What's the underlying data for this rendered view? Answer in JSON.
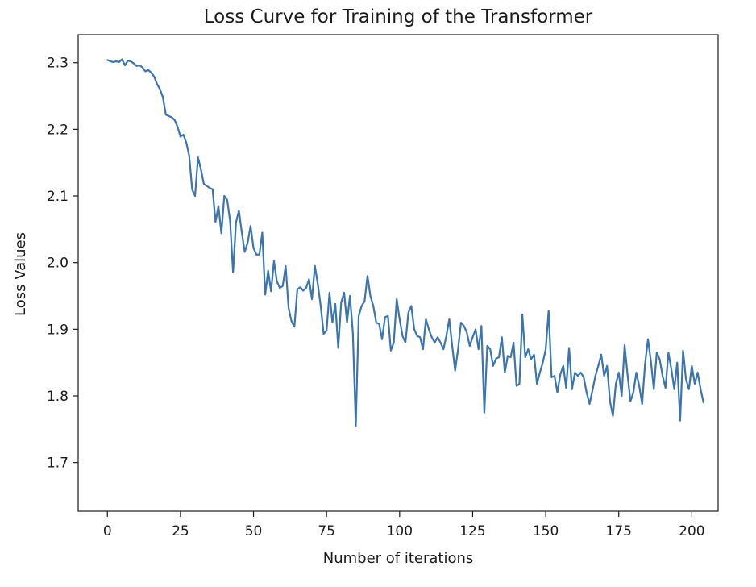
{
  "chart_data": {
    "type": "line",
    "title": "Loss Curve for Training of the Transformer",
    "xlabel": "Number of iterations",
    "ylabel": "Loss Values",
    "xlim": [
      -10,
      209
    ],
    "ylim": [
      1.627,
      2.342
    ],
    "x_ticks": [
      0,
      25,
      50,
      75,
      100,
      125,
      150,
      175,
      200
    ],
    "x_tick_labels": [
      "0",
      "25",
      "50",
      "75",
      "100",
      "125",
      "150",
      "175",
      "200"
    ],
    "y_ticks": [
      1.7,
      1.8,
      1.9,
      2.0,
      2.1,
      2.2,
      2.3
    ],
    "y_tick_labels": [
      "1.7",
      "1.8",
      "1.9",
      "2.0",
      "2.1",
      "2.2",
      "2.3"
    ],
    "grid": false,
    "series": [
      {
        "color": "#3b75af",
        "x_start": 0,
        "x_step": 1,
        "values": [
          2.304,
          2.302,
          2.301,
          2.302,
          2.301,
          2.305,
          2.296,
          2.303,
          2.302,
          2.299,
          2.295,
          2.296,
          2.293,
          2.287,
          2.289,
          2.285,
          2.279,
          2.268,
          2.26,
          2.248,
          2.222,
          2.22,
          2.218,
          2.214,
          2.204,
          2.189,
          2.192,
          2.18,
          2.16,
          2.11,
          2.1,
          2.158,
          2.14,
          2.118,
          2.115,
          2.112,
          2.11,
          2.061,
          2.085,
          2.044,
          2.1,
          2.094,
          2.062,
          1.985,
          2.06,
          2.078,
          2.045,
          2.016,
          2.03,
          2.055,
          2.022,
          2.012,
          2.012,
          2.045,
          1.952,
          1.988,
          1.957,
          2.002,
          1.972,
          1.962,
          1.965,
          1.995,
          1.932,
          1.912,
          1.904,
          1.96,
          1.963,
          1.958,
          1.962,
          1.975,
          1.945,
          1.995,
          1.968,
          1.935,
          1.893,
          1.898,
          1.955,
          1.91,
          1.938,
          1.872,
          1.94,
          1.955,
          1.91,
          1.95,
          1.895,
          1.755,
          1.92,
          1.935,
          1.942,
          1.98,
          1.95,
          1.935,
          1.91,
          1.908,
          1.885,
          1.918,
          1.92,
          1.868,
          1.88,
          1.945,
          1.915,
          1.89,
          1.88,
          1.925,
          1.935,
          1.9,
          1.89,
          1.888,
          1.87,
          1.915,
          1.9,
          1.888,
          1.88,
          1.888,
          1.88,
          1.87,
          1.89,
          1.915,
          1.875,
          1.838,
          1.87,
          1.91,
          1.905,
          1.895,
          1.875,
          1.888,
          1.9,
          1.87,
          1.905,
          1.775,
          1.875,
          1.87,
          1.845,
          1.856,
          1.858,
          1.888,
          1.835,
          1.86,
          1.858,
          1.88,
          1.815,
          1.818,
          1.922,
          1.858,
          1.87,
          1.855,
          1.862,
          1.818,
          1.835,
          1.85,
          1.87,
          1.928,
          1.828,
          1.83,
          1.805,
          1.832,
          1.845,
          1.812,
          1.872,
          1.81,
          1.835,
          1.83,
          1.835,
          1.828,
          1.805,
          1.788,
          1.808,
          1.83,
          1.845,
          1.862,
          1.83,
          1.845,
          1.792,
          1.77,
          1.818,
          1.835,
          1.8,
          1.876,
          1.832,
          1.792,
          1.805,
          1.835,
          1.815,
          1.788,
          1.848,
          1.885,
          1.852,
          1.81,
          1.865,
          1.855,
          1.83,
          1.812,
          1.865,
          1.84,
          1.81,
          1.85,
          1.763,
          1.868,
          1.825,
          1.81,
          1.845,
          1.818,
          1.835,
          1.81,
          1.79
        ]
      }
    ]
  }
}
